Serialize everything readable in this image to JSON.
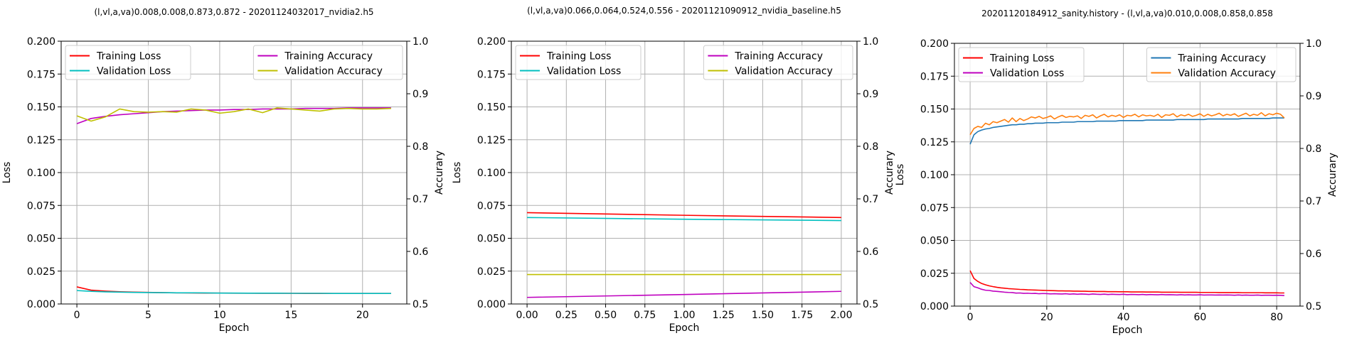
{
  "chart_data": [
    {
      "type": "line",
      "title": "(l,vl,a,va)0.008,0.008,0.873,0.872 - 20201124032017_nvidia2.h5",
      "xlabel": "Epoch",
      "ylabel": "Loss",
      "y2label": "Accurary",
      "xlim": [
        -1.1,
        23.1
      ],
      "xticks": [
        0,
        5,
        10,
        15,
        20
      ],
      "xtick_labels": [
        "0",
        "5",
        "10",
        "15",
        "20"
      ],
      "ylim": [
        0,
        0.2
      ],
      "yticks": [
        0,
        0.025,
        0.05,
        0.075,
        0.1,
        0.125,
        0.15,
        0.175,
        0.2
      ],
      "ytick_labels": [
        "0.000",
        "0.025",
        "0.050",
        "0.075",
        "0.100",
        "0.125",
        "0.150",
        "0.175",
        "0.200"
      ],
      "y2lim": [
        0.5,
        1.0
      ],
      "y2ticks": [
        0.5,
        0.6,
        0.7,
        0.8,
        0.9,
        1.0
      ],
      "y2tick_labels": [
        "0.5",
        "0.6",
        "0.7",
        "0.8",
        "0.9",
        "1.0"
      ],
      "grid": true,
      "legend_left_position": "upper-left",
      "legend_right_position": "upper-right",
      "x": [
        0,
        1,
        2,
        3,
        4,
        5,
        6,
        7,
        8,
        9,
        10,
        11,
        12,
        13,
        14,
        15,
        16,
        17,
        18,
        19,
        20,
        21,
        22
      ],
      "series": [
        {
          "name": "Training Loss",
          "axis": "left",
          "color": "#ff0000",
          "values": [
            0.013,
            0.0105,
            0.0098,
            0.0093,
            0.009,
            0.0088,
            0.0086,
            0.0085,
            0.0084,
            0.0083,
            0.0083,
            0.0082,
            0.0082,
            0.0081,
            0.0081,
            0.0081,
            0.008,
            0.008,
            0.008,
            0.008,
            0.008,
            0.008,
            0.008
          ]
        },
        {
          "name": "Validation Loss",
          "axis": "left",
          "color": "#00bfbf",
          "values": [
            0.0102,
            0.0096,
            0.0092,
            0.009,
            0.0088,
            0.0087,
            0.0086,
            0.0085,
            0.0085,
            0.0084,
            0.0083,
            0.0083,
            0.0082,
            0.0082,
            0.0082,
            0.0081,
            0.0081,
            0.0081,
            0.008,
            0.008,
            0.008,
            0.008,
            0.008
          ]
        },
        {
          "name": "Training Accuracy",
          "axis": "right",
          "color": "#bf00bf",
          "values": [
            0.843,
            0.853,
            0.857,
            0.86,
            0.862,
            0.864,
            0.866,
            0.867,
            0.868,
            0.869,
            0.869,
            0.87,
            0.87,
            0.871,
            0.871,
            0.871,
            0.872,
            0.872,
            0.872,
            0.873,
            0.873,
            0.873,
            0.873
          ]
        },
        {
          "name": "Validation Accuracy",
          "axis": "right",
          "color": "#bfbf00",
          "values": [
            0.858,
            0.848,
            0.856,
            0.871,
            0.866,
            0.865,
            0.866,
            0.865,
            0.871,
            0.869,
            0.863,
            0.866,
            0.871,
            0.864,
            0.873,
            0.871,
            0.869,
            0.867,
            0.871,
            0.872,
            0.871,
            0.871,
            0.872
          ]
        }
      ]
    },
    {
      "type": "line",
      "title": "(l,vl,a,va)0.066,0.064,0.524,0.556 - 20201121090912_nvidia_baseline.h5",
      "xlabel": "Epoch",
      "ylabel": "Loss",
      "y2label": "Accurary",
      "xlim": [
        -0.1,
        2.1
      ],
      "xticks": [
        0,
        0.25,
        0.5,
        0.75,
        1.0,
        1.25,
        1.5,
        1.75,
        2.0
      ],
      "xtick_labels": [
        "0.00",
        "0.25",
        "0.50",
        "0.75",
        "1.00",
        "1.25",
        "1.50",
        "1.75",
        "2.00"
      ],
      "ylim": [
        0,
        0.2
      ],
      "yticks": [
        0,
        0.025,
        0.05,
        0.075,
        0.1,
        0.125,
        0.15,
        0.175,
        0.2
      ],
      "ytick_labels": [
        "0.000",
        "0.025",
        "0.050",
        "0.075",
        "0.100",
        "0.125",
        "0.150",
        "0.175",
        "0.200"
      ],
      "y2lim": [
        0.5,
        1.0
      ],
      "y2ticks": [
        0.5,
        0.6,
        0.7,
        0.8,
        0.9,
        1.0
      ],
      "y2tick_labels": [
        "0.5",
        "0.6",
        "0.7",
        "0.8",
        "0.9",
        "1.0"
      ],
      "grid": true,
      "legend_left_position": "upper-left",
      "legend_right_position": "upper-right",
      "x": [
        0,
        1,
        2
      ],
      "series": [
        {
          "name": "Training Loss",
          "axis": "left",
          "color": "#ff0000",
          "values": [
            0.0695,
            0.0675,
            0.0658
          ]
        },
        {
          "name": "Validation Loss",
          "axis": "left",
          "color": "#00bfbf",
          "values": [
            0.0658,
            0.0645,
            0.0635
          ]
        },
        {
          "name": "Training Accuracy",
          "axis": "right",
          "color": "#bf00bf",
          "values": [
            0.5125,
            0.518,
            0.524
          ]
        },
        {
          "name": "Validation Accuracy",
          "axis": "right",
          "color": "#bfbf00",
          "values": [
            0.556,
            0.556,
            0.556
          ]
        }
      ]
    },
    {
      "type": "line",
      "title": "20201120184912_sanity.history - (l,vl,a,va)0.010,0.008,0.858,0.858",
      "xlabel": "Epoch",
      "ylabel": "Loss",
      "y2label": "Accurary",
      "xlim": [
        -4.1,
        86.1
      ],
      "xticks": [
        0,
        20,
        40,
        60,
        80
      ],
      "xtick_labels": [
        "0",
        "20",
        "40",
        "60",
        "80"
      ],
      "ylim": [
        0,
        0.2
      ],
      "yticks": [
        0,
        0.025,
        0.05,
        0.075,
        0.1,
        0.125,
        0.15,
        0.175,
        0.2
      ],
      "ytick_labels": [
        "0.000",
        "0.025",
        "0.050",
        "0.075",
        "0.100",
        "0.125",
        "0.150",
        "0.175",
        "0.200"
      ],
      "y2lim": [
        0.5,
        1.0
      ],
      "y2ticks": [
        0.5,
        0.6,
        0.7,
        0.8,
        0.9,
        1.0
      ],
      "y2tick_labels": [
        "0.5",
        "0.6",
        "0.7",
        "0.8",
        "0.9",
        "1.0"
      ],
      "grid": true,
      "legend_left_position": "upper-left",
      "legend_right_position": "upper-right",
      "x": [
        0,
        1,
        2,
        3,
        4,
        5,
        6,
        7,
        8,
        9,
        10,
        11,
        12,
        13,
        14,
        15,
        16,
        17,
        18,
        19,
        20,
        21,
        22,
        23,
        24,
        25,
        26,
        27,
        28,
        29,
        30,
        31,
        32,
        33,
        34,
        35,
        36,
        37,
        38,
        39,
        40,
        41,
        42,
        43,
        44,
        45,
        46,
        47,
        48,
        49,
        50,
        51,
        52,
        53,
        54,
        55,
        56,
        57,
        58,
        59,
        60,
        61,
        62,
        63,
        64,
        65,
        66,
        67,
        68,
        69,
        70,
        71,
        72,
        73,
        74,
        75,
        76,
        77,
        78,
        79,
        80,
        81,
        82
      ],
      "series": [
        {
          "name": "Training Loss",
          "axis": "left",
          "color": "#ff0000",
          "values": [
            0.027,
            0.021,
            0.0188,
            0.0172,
            0.0162,
            0.0154,
            0.0148,
            0.0143,
            0.0139,
            0.0136,
            0.0133,
            0.0131,
            0.0129,
            0.0127,
            0.0126,
            0.0124,
            0.0123,
            0.0122,
            0.0121,
            0.012,
            0.0119,
            0.0118,
            0.0117,
            0.0116,
            0.0116,
            0.0115,
            0.0115,
            0.0114,
            0.0114,
            0.0113,
            0.0113,
            0.0112,
            0.0112,
            0.0111,
            0.0111,
            0.0111,
            0.011,
            0.011,
            0.011,
            0.0109,
            0.0109,
            0.0109,
            0.0108,
            0.0108,
            0.0108,
            0.0108,
            0.0107,
            0.0107,
            0.0107,
            0.0107,
            0.0106,
            0.0106,
            0.0106,
            0.0106,
            0.0106,
            0.0105,
            0.0105,
            0.0105,
            0.0105,
            0.0105,
            0.0104,
            0.0104,
            0.0104,
            0.0104,
            0.0104,
            0.0103,
            0.0103,
            0.0103,
            0.0103,
            0.0103,
            0.0103,
            0.0102,
            0.0102,
            0.0102,
            0.0102,
            0.0102,
            0.0102,
            0.0101,
            0.0101,
            0.0101,
            0.0101,
            0.01,
            0.01
          ]
        },
        {
          "name": "Validation Loss",
          "axis": "left",
          "color": "#bf00bf",
          "values": [
            0.018,
            0.0148,
            0.0139,
            0.0128,
            0.0121,
            0.0119,
            0.0114,
            0.0112,
            0.0109,
            0.0106,
            0.0104,
            0.0103,
            0.0099,
            0.01,
            0.0097,
            0.0098,
            0.0096,
            0.0097,
            0.0094,
            0.0096,
            0.0095,
            0.0093,
            0.0094,
            0.0093,
            0.0092,
            0.0094,
            0.0091,
            0.0093,
            0.009,
            0.0092,
            0.0091,
            0.0089,
            0.0092,
            0.009,
            0.0089,
            0.0091,
            0.0088,
            0.009,
            0.0089,
            0.0088,
            0.009,
            0.0087,
            0.0089,
            0.0088,
            0.0087,
            0.0089,
            0.0086,
            0.0088,
            0.0087,
            0.0086,
            0.0088,
            0.0086,
            0.0087,
            0.0086,
            0.0085,
            0.0087,
            0.0085,
            0.0086,
            0.0085,
            0.0085,
            0.0086,
            0.0084,
            0.0085,
            0.0085,
            0.0084,
            0.0085,
            0.0084,
            0.0085,
            0.0084,
            0.0083,
            0.0085,
            0.0083,
            0.0084,
            0.0083,
            0.0083,
            0.0084,
            0.0082,
            0.0083,
            0.0083,
            0.0082,
            0.0083,
            0.0082,
            0.008
          ]
        },
        {
          "name": "Training Accuracy",
          "axis": "right",
          "color": "#1f77b4",
          "values": [
            0.808,
            0.826,
            0.832,
            0.835,
            0.837,
            0.838,
            0.84,
            0.841,
            0.842,
            0.843,
            0.844,
            0.845,
            0.845,
            0.846,
            0.846,
            0.847,
            0.847,
            0.848,
            0.848,
            0.848,
            0.849,
            0.849,
            0.849,
            0.849,
            0.85,
            0.85,
            0.85,
            0.85,
            0.851,
            0.851,
            0.851,
            0.851,
            0.851,
            0.852,
            0.852,
            0.852,
            0.852,
            0.852,
            0.852,
            0.853,
            0.853,
            0.853,
            0.853,
            0.853,
            0.853,
            0.853,
            0.854,
            0.854,
            0.854,
            0.854,
            0.854,
            0.854,
            0.854,
            0.854,
            0.855,
            0.855,
            0.855,
            0.855,
            0.855,
            0.855,
            0.855,
            0.855,
            0.856,
            0.856,
            0.856,
            0.856,
            0.856,
            0.856,
            0.856,
            0.856,
            0.856,
            0.857,
            0.857,
            0.857,
            0.857,
            0.857,
            0.857,
            0.857,
            0.857,
            0.858,
            0.858,
            0.858,
            0.858
          ]
        },
        {
          "name": "Validation Accuracy",
          "axis": "right",
          "color": "#ff7f0e",
          "values": [
            0.826,
            0.838,
            0.842,
            0.84,
            0.848,
            0.845,
            0.851,
            0.849,
            0.852,
            0.855,
            0.85,
            0.858,
            0.851,
            0.857,
            0.853,
            0.856,
            0.86,
            0.858,
            0.861,
            0.857,
            0.859,
            0.862,
            0.856,
            0.86,
            0.863,
            0.859,
            0.861,
            0.86,
            0.862,
            0.857,
            0.863,
            0.861,
            0.864,
            0.858,
            0.862,
            0.865,
            0.86,
            0.863,
            0.861,
            0.864,
            0.859,
            0.863,
            0.862,
            0.865,
            0.86,
            0.864,
            0.862,
            0.863,
            0.861,
            0.865,
            0.859,
            0.864,
            0.863,
            0.866,
            0.86,
            0.864,
            0.862,
            0.865,
            0.861,
            0.863,
            0.866,
            0.861,
            0.865,
            0.862,
            0.864,
            0.867,
            0.862,
            0.865,
            0.863,
            0.866,
            0.861,
            0.864,
            0.867,
            0.862,
            0.865,
            0.863,
            0.868,
            0.862,
            0.866,
            0.864,
            0.867,
            0.865,
            0.858
          ]
        }
      ]
    }
  ]
}
